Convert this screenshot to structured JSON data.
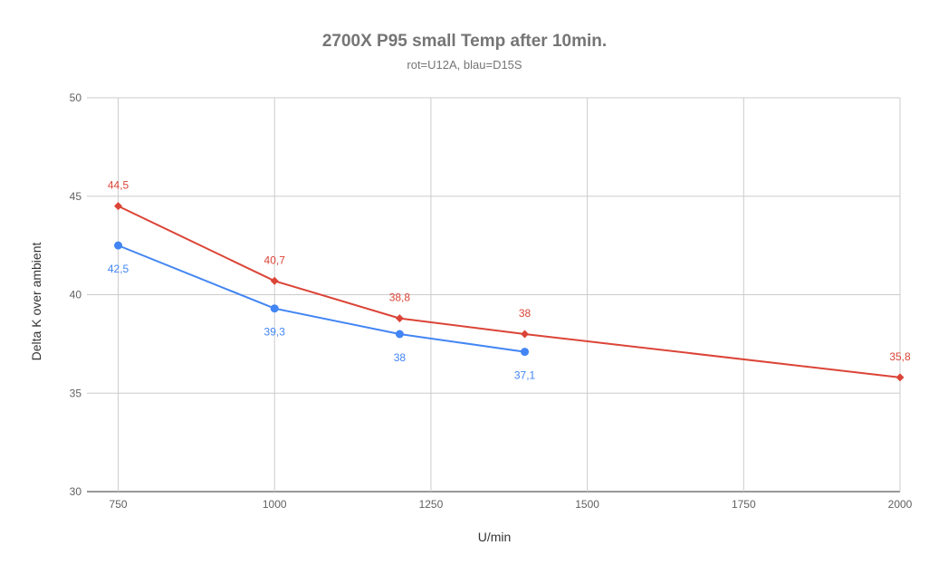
{
  "chart_data": {
    "type": "line",
    "title": "2700X P95 small Temp after 10min.",
    "subtitle": "rot=U12A, blau=D15S",
    "xlabel": "U/min",
    "ylabel": "Delta K over ambient",
    "xlim": [
      700,
      2000
    ],
    "ylim": [
      30,
      50
    ],
    "x_ticks": [
      750,
      1000,
      1250,
      1500,
      1750,
      2000
    ],
    "y_ticks": [
      30,
      35,
      40,
      45,
      50
    ],
    "grid": true,
    "legend": "none",
    "series": [
      {
        "color": "#db4437",
        "marker": "diamond",
        "label_position": "above",
        "points": [
          {
            "x": 750,
            "y": 44.5,
            "label": "44,5"
          },
          {
            "x": 1000,
            "y": 40.7,
            "label": "40,7"
          },
          {
            "x": 1200,
            "y": 38.8,
            "label": "38,8"
          },
          {
            "x": 1400,
            "y": 38,
            "label": "38"
          },
          {
            "x": 2000,
            "y": 35.8,
            "label": "35,8"
          }
        ]
      },
      {
        "color": "#4285f4",
        "marker": "circle",
        "label_position": "below",
        "points": [
          {
            "x": 750,
            "y": 42.5,
            "label": "42,5"
          },
          {
            "x": 1000,
            "y": 39.3,
            "label": "39,3"
          },
          {
            "x": 1200,
            "y": 38,
            "label": "38"
          },
          {
            "x": 1400,
            "y": 37.1,
            "label": "37,1"
          }
        ]
      }
    ]
  }
}
